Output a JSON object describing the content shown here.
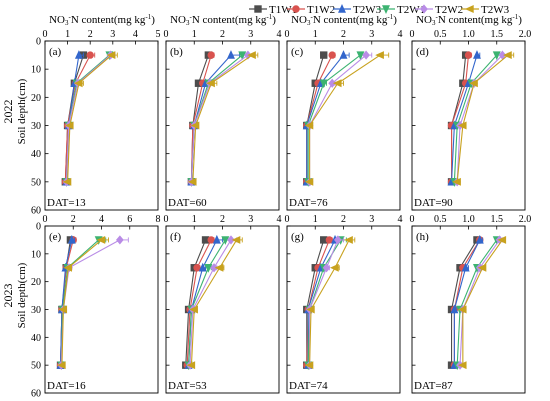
{
  "legend": [
    {
      "name": "T1W1",
      "color": "#4d4d4d",
      "marker": "square"
    },
    {
      "name": "T1W2",
      "color": "#d9534f",
      "marker": "circle"
    },
    {
      "name": "T2W3",
      "color": "#3366cc",
      "marker": "triangle-up"
    },
    {
      "name": "T2W1",
      "color": "#3cb371",
      "marker": "triangle-down"
    },
    {
      "name": "T2W2",
      "color": "#b98ce6",
      "marker": "diamond"
    },
    {
      "name": "T2W3",
      "color": "#c8a21e",
      "marker": "triangle-left"
    }
  ],
  "top_axis_label": "NO3-N content(mg kg-1)",
  "y_axis_label": "Soil depth(cm)",
  "row_labels": [
    "2022",
    "2023"
  ],
  "chart_data": [
    {
      "type": "line",
      "panel": "(a)",
      "year": "2022",
      "dat": "DAT=13",
      "xlim": [
        0,
        5
      ],
      "xticks": [
        0,
        1,
        2,
        3,
        4,
        5
      ],
      "ylim": [
        60,
        0
      ],
      "yticks": [
        0,
        10,
        20,
        30,
        40,
        50,
        60
      ],
      "depth": [
        5,
        15,
        30,
        50
      ],
      "series": [
        {
          "name": "T1W1",
          "values": [
            1.7,
            1.3,
            1.0,
            0.9
          ],
          "err": [
            0.2,
            0.1,
            0.05,
            0.05
          ]
        },
        {
          "name": "T1W2",
          "values": [
            2.0,
            1.35,
            1.0,
            0.9
          ],
          "err": [
            0.2,
            0.1,
            0.05,
            0.05
          ]
        },
        {
          "name": "T2W3",
          "values": [
            1.5,
            1.3,
            1.05,
            0.95
          ],
          "err": [
            0.2,
            0.1,
            0.05,
            0.05
          ]
        },
        {
          "name": "T2W1",
          "values": [
            2.85,
            1.4,
            1.05,
            0.95
          ],
          "err": [
            0.25,
            0.15,
            0.05,
            0.05
          ]
        },
        {
          "name": "T2W2",
          "values": [
            2.9,
            1.45,
            1.05,
            0.95
          ],
          "err": [
            0.2,
            0.15,
            0.05,
            0.05
          ]
        },
        {
          "name": "T2W3",
          "values": [
            2.95,
            1.5,
            1.1,
            1.0
          ],
          "err": [
            0.25,
            0.2,
            0.05,
            0.05
          ]
        }
      ]
    },
    {
      "type": "line",
      "panel": "(b)",
      "year": "2022",
      "dat": "DAT=60",
      "xlim": [
        0,
        4
      ],
      "xticks": [
        0,
        1,
        2,
        3,
        4
      ],
      "ylim": [
        60,
        0
      ],
      "yticks": [
        0,
        10,
        20,
        30,
        40,
        50,
        60
      ],
      "depth": [
        5,
        15,
        30,
        50
      ],
      "series": [
        {
          "name": "T1W1",
          "values": [
            1.5,
            1.15,
            0.95,
            0.9
          ],
          "err": [
            0.1,
            0.1,
            0.05,
            0.05
          ]
        },
        {
          "name": "T1W2",
          "values": [
            1.6,
            1.3,
            0.95,
            0.9
          ],
          "err": [
            0.1,
            0.1,
            0.05,
            0.05
          ]
        },
        {
          "name": "T2W3",
          "values": [
            2.3,
            1.4,
            1.0,
            0.9
          ],
          "err": [
            0.3,
            0.1,
            0.05,
            0.05
          ]
        },
        {
          "name": "T2W1",
          "values": [
            2.7,
            1.5,
            1.0,
            0.9
          ],
          "err": [
            0.2,
            0.1,
            0.05,
            0.05
          ]
        },
        {
          "name": "T2W2",
          "values": [
            2.9,
            1.55,
            1.0,
            0.9
          ],
          "err": [
            0.2,
            0.15,
            0.05,
            0.05
          ]
        },
        {
          "name": "T2W3",
          "values": [
            3.05,
            1.6,
            1.05,
            0.95
          ],
          "err": [
            0.2,
            0.2,
            0.05,
            0.05
          ]
        }
      ]
    },
    {
      "type": "line",
      "panel": "(c)",
      "year": "2022",
      "dat": "DAT=76",
      "xlim": [
        0,
        4
      ],
      "xticks": [
        0,
        1,
        2,
        3,
        4
      ],
      "ylim": [
        60,
        0
      ],
      "yticks": [
        0,
        10,
        20,
        30,
        40,
        50,
        60
      ],
      "depth": [
        5,
        15,
        30,
        50
      ],
      "series": [
        {
          "name": "T1W1",
          "values": [
            1.3,
            1.0,
            0.7,
            0.7
          ],
          "err": [
            0.1,
            0.1,
            0.05,
            0.05
          ]
        },
        {
          "name": "T1W2",
          "values": [
            1.6,
            1.1,
            0.7,
            0.7
          ],
          "err": [
            0.1,
            0.1,
            0.05,
            0.05
          ]
        },
        {
          "name": "T2W3",
          "values": [
            2.0,
            1.2,
            0.7,
            0.7
          ],
          "err": [
            0.2,
            0.1,
            0.05,
            0.05
          ]
        },
        {
          "name": "T2W1",
          "values": [
            2.6,
            1.3,
            0.75,
            0.75
          ],
          "err": [
            0.2,
            0.1,
            0.05,
            0.05
          ]
        },
        {
          "name": "T2W2",
          "values": [
            2.8,
            1.6,
            0.8,
            0.8
          ],
          "err": [
            0.2,
            0.1,
            0.05,
            0.05
          ]
        },
        {
          "name": "T2W3",
          "values": [
            3.3,
            1.8,
            0.8,
            0.8
          ],
          "err": [
            0.3,
            0.2,
            0.05,
            0.05
          ]
        }
      ]
    },
    {
      "type": "line",
      "panel": "(d)",
      "year": "2022",
      "dat": "DAT=90",
      "xlim": [
        0,
        2
      ],
      "xticks": [
        0,
        0.5,
        1.0,
        1.5,
        2.0
      ],
      "ylim": [
        60,
        0
      ],
      "yticks": [
        0,
        10,
        20,
        30,
        40,
        50,
        60
      ],
      "depth": [
        5,
        15,
        30,
        50
      ],
      "series": [
        {
          "name": "T1W1",
          "values": [
            0.95,
            0.9,
            0.7,
            0.7
          ],
          "err": [
            0.05,
            0.05,
            0.03,
            0.03
          ]
        },
        {
          "name": "T1W2",
          "values": [
            1.0,
            0.95,
            0.7,
            0.7
          ],
          "err": [
            0.05,
            0.05,
            0.03,
            0.03
          ]
        },
        {
          "name": "T2W3",
          "values": [
            1.15,
            1.0,
            0.75,
            0.7
          ],
          "err": [
            0.05,
            0.05,
            0.03,
            0.03
          ]
        },
        {
          "name": "T2W1",
          "values": [
            1.5,
            1.05,
            0.8,
            0.75
          ],
          "err": [
            0.1,
            0.05,
            0.03,
            0.03
          ]
        },
        {
          "name": "T2W2",
          "values": [
            1.6,
            1.1,
            0.85,
            0.8
          ],
          "err": [
            0.1,
            0.05,
            0.03,
            0.03
          ]
        },
        {
          "name": "T2W3",
          "values": [
            1.7,
            1.1,
            0.9,
            0.8
          ],
          "err": [
            0.1,
            0.05,
            0.03,
            0.03
          ]
        }
      ]
    },
    {
      "type": "line",
      "panel": "(e)",
      "year": "2023",
      "dat": "DAT=16",
      "xlim": [
        0,
        8
      ],
      "xticks": [
        0,
        2,
        4,
        6,
        8
      ],
      "ylim": [
        60,
        0
      ],
      "yticks": [
        0,
        10,
        20,
        30,
        40,
        50,
        60
      ],
      "depth": [
        5,
        15,
        30,
        50
      ],
      "series": [
        {
          "name": "T1W1",
          "values": [
            1.8,
            1.5,
            1.2,
            1.1
          ],
          "err": [
            0.2,
            0.1,
            0.05,
            0.05
          ]
        },
        {
          "name": "T1W2",
          "values": [
            2.0,
            1.5,
            1.2,
            1.1
          ],
          "err": [
            0.2,
            0.1,
            0.05,
            0.05
          ]
        },
        {
          "name": "T2W3",
          "values": [
            1.9,
            1.45,
            1.2,
            1.1
          ],
          "err": [
            0.2,
            0.1,
            0.05,
            0.05
          ]
        },
        {
          "name": "T2W1",
          "values": [
            3.8,
            1.6,
            1.25,
            1.15
          ],
          "err": [
            0.5,
            0.2,
            0.05,
            0.05
          ]
        },
        {
          "name": "T2W2",
          "values": [
            5.3,
            1.7,
            1.3,
            1.15
          ],
          "err": [
            0.6,
            0.2,
            0.05,
            0.05
          ]
        },
        {
          "name": "T2W3",
          "values": [
            4.0,
            1.65,
            1.3,
            1.2
          ],
          "err": [
            0.5,
            0.2,
            0.05,
            0.05
          ]
        }
      ]
    },
    {
      "type": "line",
      "panel": "(f)",
      "year": "2023",
      "dat": "DAT=53",
      "xlim": [
        0,
        4
      ],
      "xticks": [
        0,
        1,
        2,
        3,
        4
      ],
      "ylim": [
        60,
        0
      ],
      "yticks": [
        0,
        10,
        20,
        30,
        40,
        50,
        60
      ],
      "depth": [
        5,
        15,
        30,
        50
      ],
      "series": [
        {
          "name": "T1W1",
          "values": [
            1.4,
            1.0,
            0.8,
            0.7
          ],
          "err": [
            0.1,
            0.1,
            0.05,
            0.05
          ]
        },
        {
          "name": "T1W2",
          "values": [
            1.6,
            1.1,
            0.85,
            0.75
          ],
          "err": [
            0.1,
            0.1,
            0.05,
            0.05
          ]
        },
        {
          "name": "T2W3",
          "values": [
            1.8,
            1.3,
            0.9,
            0.8
          ],
          "err": [
            0.2,
            0.1,
            0.05,
            0.05
          ]
        },
        {
          "name": "T2W1",
          "values": [
            2.1,
            1.5,
            0.9,
            0.8
          ],
          "err": [
            0.2,
            0.1,
            0.05,
            0.05
          ]
        },
        {
          "name": "T2W2",
          "values": [
            2.3,
            1.7,
            0.95,
            0.85
          ],
          "err": [
            0.2,
            0.1,
            0.05,
            0.05
          ]
        },
        {
          "name": "T2W3",
          "values": [
            2.5,
            1.9,
            1.0,
            0.9
          ],
          "err": [
            0.2,
            0.15,
            0.05,
            0.05
          ]
        }
      ]
    },
    {
      "type": "line",
      "panel": "(g)",
      "year": "2023",
      "dat": "DAT=74",
      "xlim": [
        0,
        4
      ],
      "xticks": [
        0,
        1,
        2,
        3,
        4
      ],
      "ylim": [
        60,
        0
      ],
      "yticks": [
        0,
        10,
        20,
        30,
        40,
        50,
        60
      ],
      "depth": [
        5,
        15,
        30,
        50
      ],
      "series": [
        {
          "name": "T1W1",
          "values": [
            1.3,
            1.0,
            0.7,
            0.7
          ],
          "err": [
            0.1,
            0.1,
            0.05,
            0.05
          ]
        },
        {
          "name": "T1W2",
          "values": [
            1.5,
            1.1,
            0.75,
            0.7
          ],
          "err": [
            0.1,
            0.1,
            0.05,
            0.05
          ]
        },
        {
          "name": "T2W3",
          "values": [
            1.7,
            1.2,
            0.75,
            0.75
          ],
          "err": [
            0.2,
            0.1,
            0.05,
            0.05
          ]
        },
        {
          "name": "T2W1",
          "values": [
            1.9,
            1.3,
            0.8,
            0.75
          ],
          "err": [
            0.2,
            0.1,
            0.05,
            0.05
          ]
        },
        {
          "name": "T2W2",
          "values": [
            1.8,
            1.4,
            0.8,
            0.8
          ],
          "err": [
            0.2,
            0.1,
            0.05,
            0.05
          ]
        },
        {
          "name": "T2W3",
          "values": [
            2.2,
            1.7,
            0.85,
            0.8
          ],
          "err": [
            0.2,
            0.15,
            0.05,
            0.05
          ]
        }
      ]
    },
    {
      "type": "line",
      "panel": "(h)",
      "year": "2023",
      "dat": "DAT=87",
      "xlim": [
        0,
        2
      ],
      "xticks": [
        0,
        0.5,
        1.0,
        1.5,
        2.0
      ],
      "ylim": [
        60,
        0
      ],
      "yticks": [
        0,
        10,
        20,
        30,
        40,
        50,
        60
      ],
      "depth": [
        5,
        15,
        30,
        50
      ],
      "series": [
        {
          "name": "T1W1",
          "values": [
            1.15,
            0.85,
            0.7,
            0.7
          ],
          "err": [
            0.05,
            0.05,
            0.03,
            0.03
          ]
        },
        {
          "name": "T1W2",
          "values": [
            1.2,
            0.9,
            0.75,
            0.75
          ],
          "err": [
            0.05,
            0.05,
            0.03,
            0.03
          ]
        },
        {
          "name": "T2W3",
          "values": [
            1.2,
            0.95,
            0.75,
            0.75
          ],
          "err": [
            0.05,
            0.05,
            0.03,
            0.03
          ]
        },
        {
          "name": "T2W1",
          "values": [
            1.5,
            1.15,
            0.85,
            0.8
          ],
          "err": [
            0.05,
            0.05,
            0.03,
            0.03
          ]
        },
        {
          "name": "T2W2",
          "values": [
            1.55,
            1.2,
            0.9,
            0.85
          ],
          "err": [
            0.05,
            0.05,
            0.03,
            0.03
          ]
        },
        {
          "name": "T2W3",
          "values": [
            1.6,
            1.25,
            0.9,
            0.9
          ],
          "err": [
            0.05,
            0.05,
            0.03,
            0.03
          ]
        }
      ]
    }
  ]
}
